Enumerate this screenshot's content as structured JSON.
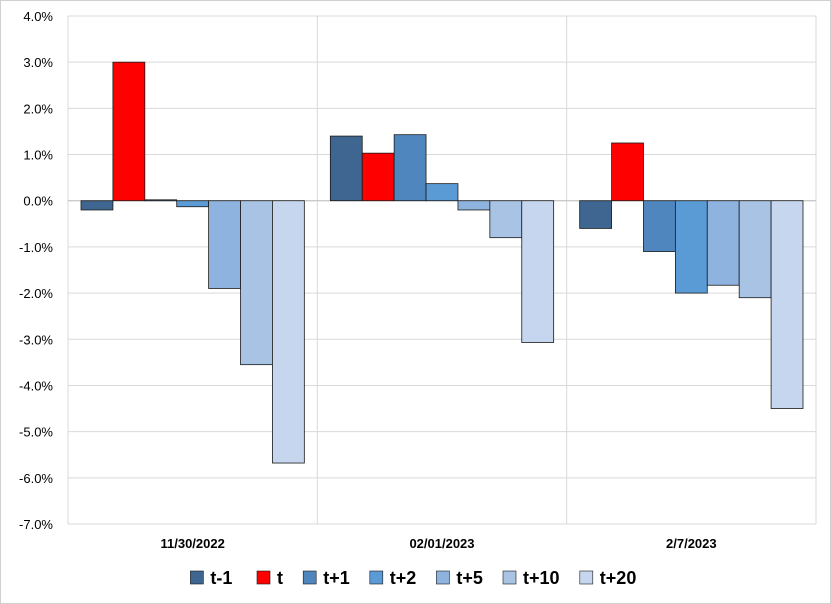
{
  "chart_data": {
    "type": "bar",
    "title": "",
    "xlabel": "",
    "ylabel": "",
    "ylim": [
      -7.0,
      4.0
    ],
    "yticks": [
      "4.0%",
      "3.0%",
      "2.0%",
      "1.0%",
      "0.0%",
      "-1.0%",
      "-2.0%",
      "-3.0%",
      "-4.0%",
      "-5.0%",
      "-6.0%",
      "-7.0%"
    ],
    "categories": [
      "11/30/2022",
      "02/01/2023",
      "2/7/2023"
    ],
    "grid": true,
    "legend_position": "bottom",
    "series": [
      {
        "name": "t-1",
        "color": "#3E6690",
        "values": [
          -0.2,
          1.4,
          -0.6
        ]
      },
      {
        "name": "t",
        "color": "#FF0000",
        "values": [
          3.0,
          1.03,
          1.25
        ]
      },
      {
        "name": "t+1",
        "color": "#4F86BE",
        "values": [
          0.02,
          1.43,
          -1.1
        ]
      },
      {
        "name": "t+2",
        "color": "#5B9BD5",
        "values": [
          -0.13,
          0.37,
          -2.0
        ]
      },
      {
        "name": "t+5",
        "color": "#8EB3DE",
        "values": [
          -1.9,
          -0.2,
          -1.83
        ]
      },
      {
        "name": "t+10",
        "color": "#A9C3E4",
        "values": [
          -3.55,
          -0.8,
          -2.1
        ]
      },
      {
        "name": "t+20",
        "color": "#C5D6EE",
        "values": [
          -5.68,
          -3.07,
          -4.5
        ]
      }
    ]
  }
}
